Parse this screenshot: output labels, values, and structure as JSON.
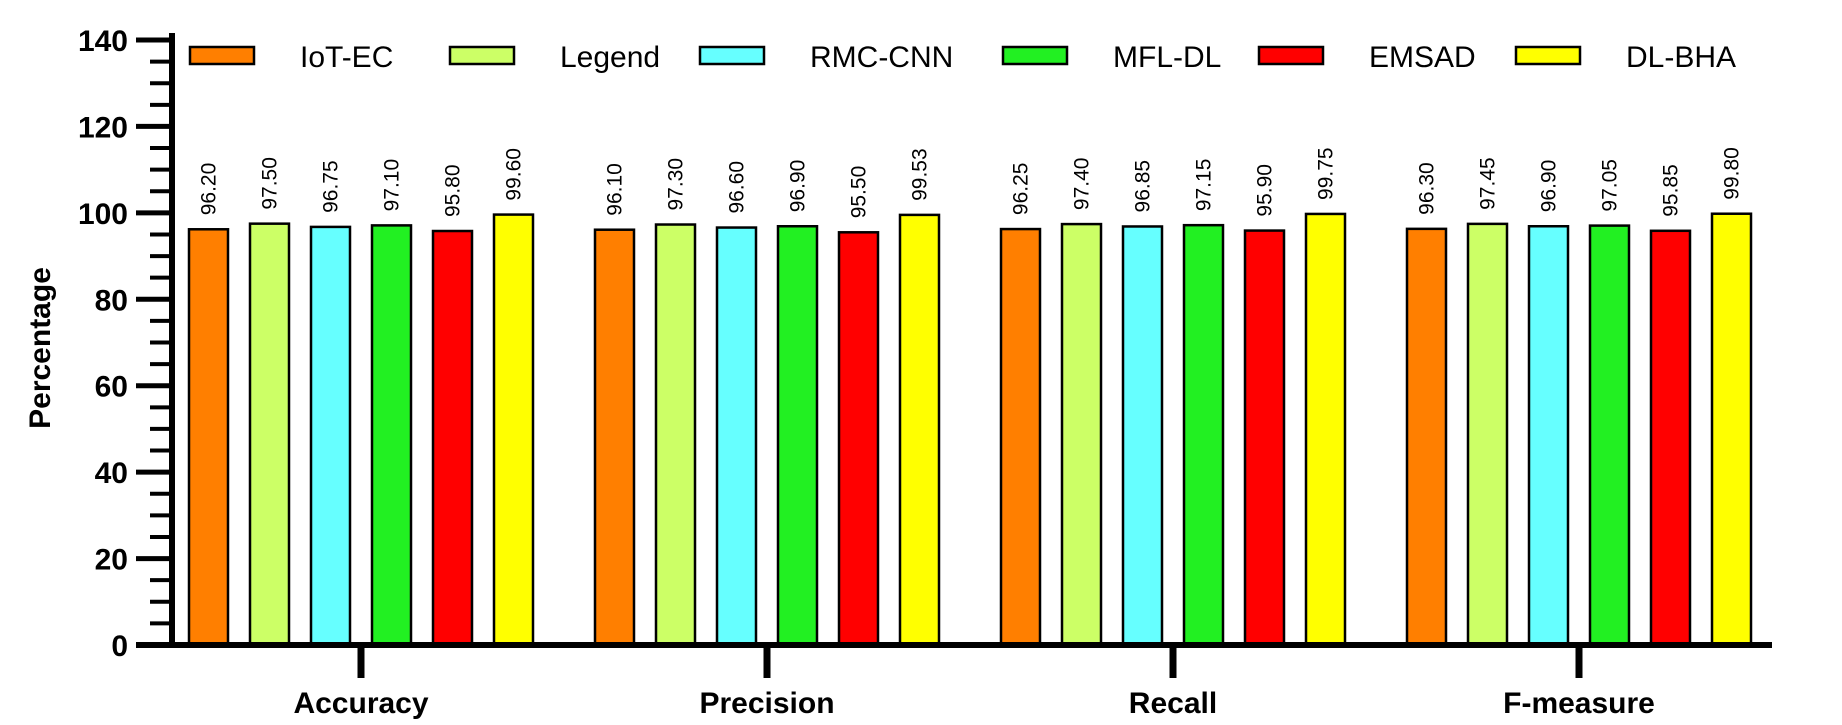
{
  "chart_data": {
    "type": "bar",
    "title": "",
    "xlabel": "",
    "ylabel": "Percentage",
    "ylim": [
      0,
      140
    ],
    "y_ticks": [
      "0",
      "20",
      "40",
      "60",
      "80",
      "100",
      "120",
      "140"
    ],
    "categories": [
      "Accuracy",
      "Precision",
      "Recall",
      "F-measure"
    ],
    "legend_position": "top",
    "grid": false,
    "series": [
      {
        "name": "IoT-EC",
        "color": "#FF7F00",
        "values": [
          96.2,
          96.1,
          96.25,
          96.3
        ],
        "labels": [
          "96.20",
          "96.10",
          "96.25",
          "96.30"
        ]
      },
      {
        "name": "Legend",
        "color": "#CCFF66",
        "values": [
          97.5,
          97.3,
          97.4,
          97.45
        ],
        "labels": [
          "97.50",
          "97.30",
          "97.40",
          "97.45"
        ]
      },
      {
        "name": "RMC-CNN",
        "color": "#66FFFF",
        "values": [
          96.75,
          96.6,
          96.85,
          96.9
        ],
        "labels": [
          "96.75",
          "96.60",
          "96.85",
          "96.90"
        ]
      },
      {
        "name": "MFL-DL",
        "color": "#22F022",
        "values": [
          97.1,
          96.9,
          97.15,
          97.05
        ],
        "labels": [
          "97.10",
          "96.90",
          "97.15",
          "97.05"
        ]
      },
      {
        "name": "EMSAD",
        "color": "#FF0000",
        "values": [
          95.8,
          95.5,
          95.9,
          95.85
        ],
        "labels": [
          "95.80",
          "95.50",
          "95.90",
          "95.85"
        ]
      },
      {
        "name": "DL-BHA",
        "color": "#FFFF00",
        "values": [
          99.6,
          99.53,
          99.75,
          99.8
        ],
        "labels": [
          "99.60",
          "99.53",
          "99.75",
          "99.80"
        ]
      }
    ]
  }
}
